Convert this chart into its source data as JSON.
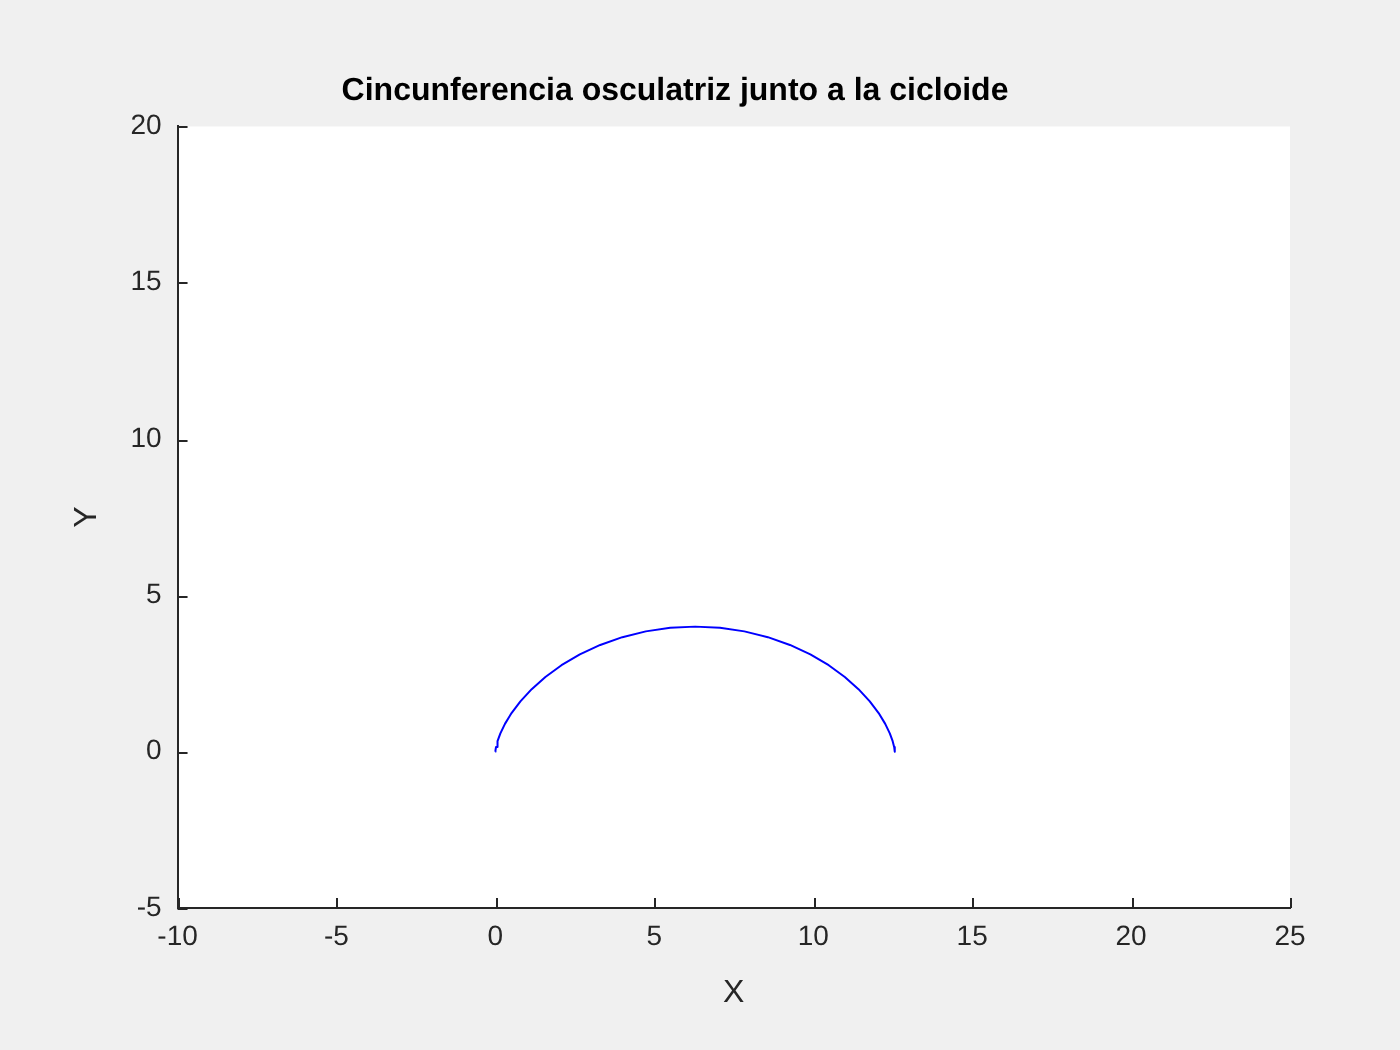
{
  "chart_data": {
    "type": "line",
    "title": "Cincunferencia osculatriz junto a la cicloide",
    "xlabel": "X",
    "ylabel": "Y",
    "x": [
      0,
      0.0025,
      0.02,
      0.067,
      0.157,
      0.301,
      0.508,
      0.787,
      1.142,
      1.573,
      2.079,
      2.657,
      3.298,
      3.994,
      4.732,
      5.5,
      6.283,
      7.066,
      7.834,
      8.572,
      9.268,
      9.909,
      10.487,
      10.993,
      11.424,
      11.779,
      12.058,
      12.265,
      12.409,
      12.499,
      12.546,
      12.564,
      12.566
    ],
    "series": [
      {
        "color": "#0000ff",
        "values": [
          0,
          0.038,
          0.152,
          0.337,
          0.586,
          0.889,
          1.235,
          1.61,
          2,
          2.39,
          2.765,
          3.111,
          3.414,
          3.663,
          3.848,
          3.962,
          4,
          3.962,
          3.848,
          3.663,
          3.414,
          3.111,
          2.765,
          2.39,
          2,
          1.61,
          1.235,
          0.889,
          0.586,
          0.337,
          0.152,
          0.038,
          0
        ]
      }
    ],
    "xlim": [
      -10,
      25
    ],
    "xticks": [
      -10,
      -5,
      0,
      5,
      10,
      15,
      20,
      25
    ],
    "ylim": [
      -5,
      20
    ],
    "yticks": [
      -5,
      0,
      5,
      10,
      15,
      20
    ],
    "grid": false,
    "legend": false,
    "marker": "none",
    "line_style": "solid"
  }
}
